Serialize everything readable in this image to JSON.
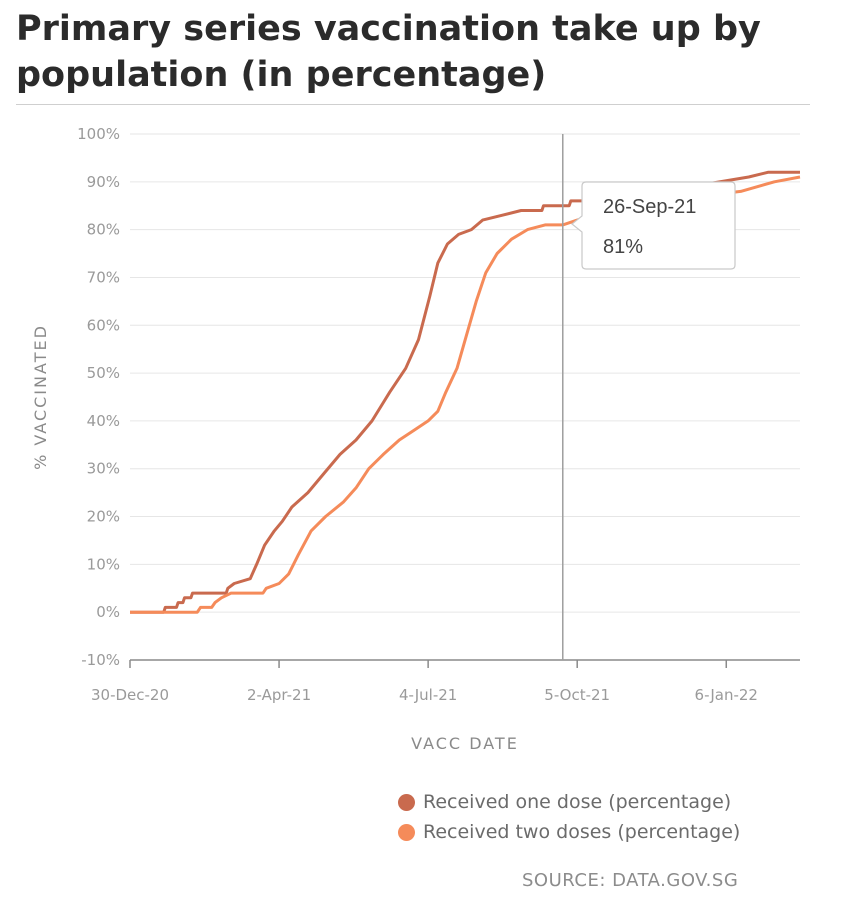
{
  "title": "Primary series vaccination take up by population (in percentage)",
  "source": "SOURCE: DATA.GOV.SG",
  "colors": {
    "one_dose": "#c96a4e",
    "two_doses": "#f58b5a",
    "grid": "#e6e6e6",
    "crosshair": "#9e9e9e"
  },
  "tooltip": {
    "date": "26-Sep-21",
    "value": "81%"
  },
  "chart_data": {
    "type": "line",
    "xlabel": "VACC DATE",
    "ylabel": "% VACCINATED",
    "x_ticks": [
      "30-Dec-20",
      "2-Apr-21",
      "4-Jul-21",
      "5-Oct-21",
      "6-Jan-22"
    ],
    "y_ticks": [
      "-10%",
      "0%",
      "10%",
      "20%",
      "30%",
      "40%",
      "50%",
      "60%",
      "70%",
      "80%",
      "90%",
      "100%"
    ],
    "ylim": [
      -10,
      100
    ],
    "xlim": [
      "2020-12-30",
      "2022-02-21"
    ],
    "grid": true,
    "legend_position": "bottom-right",
    "crosshair_date": "2021-09-26",
    "series": [
      {
        "name": "Received one dose (percentage)",
        "points": [
          [
            "2020-12-30",
            0
          ],
          [
            "2021-01-20",
            0
          ],
          [
            "2021-01-21",
            1
          ],
          [
            "2021-01-28",
            1
          ],
          [
            "2021-01-29",
            2
          ],
          [
            "2021-02-01",
            2
          ],
          [
            "2021-02-02",
            3
          ],
          [
            "2021-02-06",
            3
          ],
          [
            "2021-02-07",
            4
          ],
          [
            "2021-02-28",
            4
          ],
          [
            "2021-03-01",
            5
          ],
          [
            "2021-03-05",
            6
          ],
          [
            "2021-03-15",
            7
          ],
          [
            "2021-03-19",
            10
          ],
          [
            "2021-03-24",
            14
          ],
          [
            "2021-03-30",
            17
          ],
          [
            "2021-04-04",
            19
          ],
          [
            "2021-04-10",
            22
          ],
          [
            "2021-04-20",
            25
          ],
          [
            "2021-04-30",
            29
          ],
          [
            "2021-05-10",
            33
          ],
          [
            "2021-05-20",
            36
          ],
          [
            "2021-05-30",
            40
          ],
          [
            "2021-06-10",
            46
          ],
          [
            "2021-06-20",
            51
          ],
          [
            "2021-06-28",
            57
          ],
          [
            "2021-07-05",
            66
          ],
          [
            "2021-07-10",
            73
          ],
          [
            "2021-07-16",
            77
          ],
          [
            "2021-07-23",
            79
          ],
          [
            "2021-07-31",
            80
          ],
          [
            "2021-08-07",
            82
          ],
          [
            "2021-08-19",
            83
          ],
          [
            "2021-08-31",
            84
          ],
          [
            "2021-09-13",
            84
          ],
          [
            "2021-09-14",
            85
          ],
          [
            "2021-09-30",
            85
          ],
          [
            "2021-10-01",
            86
          ],
          [
            "2021-10-10",
            86
          ],
          [
            "2021-11-15",
            88
          ],
          [
            "2021-12-15",
            89
          ],
          [
            "2022-01-20",
            91
          ],
          [
            "2022-02-01",
            92
          ],
          [
            "2022-02-21",
            92
          ]
        ]
      },
      {
        "name": "Received two doses (percentage)",
        "points": [
          [
            "2020-12-30",
            0
          ],
          [
            "2021-02-10",
            0
          ],
          [
            "2021-02-12",
            1
          ],
          [
            "2021-02-19",
            1
          ],
          [
            "2021-02-21",
            2
          ],
          [
            "2021-02-25",
            3
          ],
          [
            "2021-03-03",
            4
          ],
          [
            "2021-03-23",
            4
          ],
          [
            "2021-03-25",
            5
          ],
          [
            "2021-04-02",
            6
          ],
          [
            "2021-04-08",
            8
          ],
          [
            "2021-04-14",
            12
          ],
          [
            "2021-04-22",
            17
          ],
          [
            "2021-05-01",
            20
          ],
          [
            "2021-05-12",
            23
          ],
          [
            "2021-05-20",
            26
          ],
          [
            "2021-05-28",
            30
          ],
          [
            "2021-06-06",
            33
          ],
          [
            "2021-06-16",
            36
          ],
          [
            "2021-06-25",
            38
          ],
          [
            "2021-07-04",
            40
          ],
          [
            "2021-07-10",
            42
          ],
          [
            "2021-07-15",
            46
          ],
          [
            "2021-07-22",
            51
          ],
          [
            "2021-07-28",
            58
          ],
          [
            "2021-08-03",
            65
          ],
          [
            "2021-08-09",
            71
          ],
          [
            "2021-08-16",
            75
          ],
          [
            "2021-08-25",
            78
          ],
          [
            "2021-09-04",
            80
          ],
          [
            "2021-09-15",
            81
          ],
          [
            "2021-09-26",
            81
          ],
          [
            "2021-10-05",
            82
          ],
          [
            "2021-10-25",
            84
          ],
          [
            "2021-11-20",
            86
          ],
          [
            "2021-12-20",
            87
          ],
          [
            "2022-01-15",
            88
          ],
          [
            "2022-02-05",
            90
          ],
          [
            "2022-02-21",
            91
          ]
        ]
      }
    ]
  }
}
